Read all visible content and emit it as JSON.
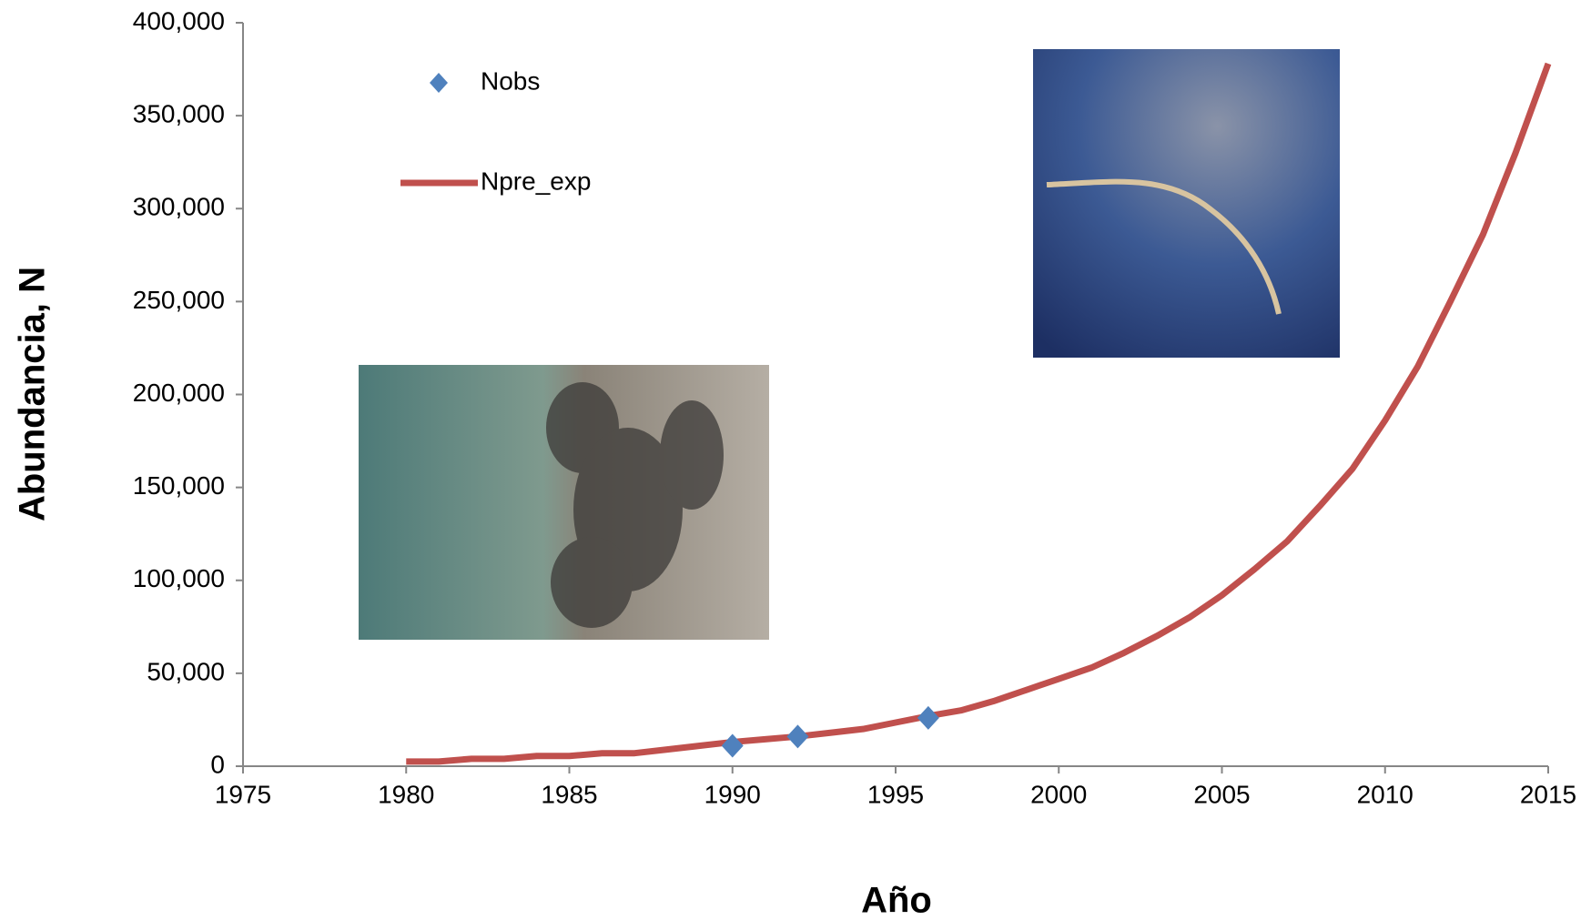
{
  "chart_data": {
    "type": "line",
    "x_label": "Año",
    "y_label": "Abundancia, N",
    "x": [
      1980,
      1981,
      1982,
      1983,
      1984,
      1985,
      1986,
      1987,
      1988,
      1989,
      1990,
      1991,
      1992,
      1993,
      1994,
      1995,
      1996,
      1997,
      1998,
      1999,
      2000,
      2001,
      2002,
      2003,
      2004,
      2005,
      2006,
      2007,
      2008,
      2009,
      2010,
      2011,
      2012,
      2013,
      2014,
      2015
    ],
    "series": [
      {
        "name": "Nobs",
        "type": "scatter",
        "color": "#4f81bd",
        "x": [
          1990,
          1992,
          1996
        ],
        "values": [
          11000,
          16000,
          26000
        ]
      },
      {
        "name": "Npre_exp",
        "type": "line",
        "color": "#c0504d",
        "values": [
          2500,
          2500,
          4000,
          4000,
          5500,
          5500,
          7000,
          7000,
          9000,
          11000,
          13000,
          14500,
          16000,
          18000,
          20000,
          23500,
          27000,
          30000,
          35000,
          41000,
          47000,
          53000,
          61000,
          70000,
          80000,
          92000,
          106000,
          121000,
          140000,
          160000,
          186000,
          215000,
          250000,
          286000,
          330000,
          378000
        ]
      }
    ],
    "xlim": [
      1975,
      2015
    ],
    "xticks": [
      1975,
      1980,
      1985,
      1990,
      1995,
      2000,
      2005,
      2010,
      2015
    ],
    "ylim": [
      0,
      400000
    ],
    "yticks": [
      0,
      {
        "value": 50000,
        "label": "50,000"
      },
      {
        "value": 100000,
        "label": "100,000"
      },
      {
        "value": 150000,
        "label": "150,000"
      },
      {
        "value": 200000,
        "label": "200,000"
      },
      {
        "value": 250000,
        "label": "250,000"
      },
      {
        "value": 300000,
        "label": "300,000"
      },
      {
        "value": 350000,
        "label": "350,000"
      },
      {
        "value": 400000,
        "label": "400,000"
      }
    ],
    "legend": "upper-left",
    "grid": false
  }
}
